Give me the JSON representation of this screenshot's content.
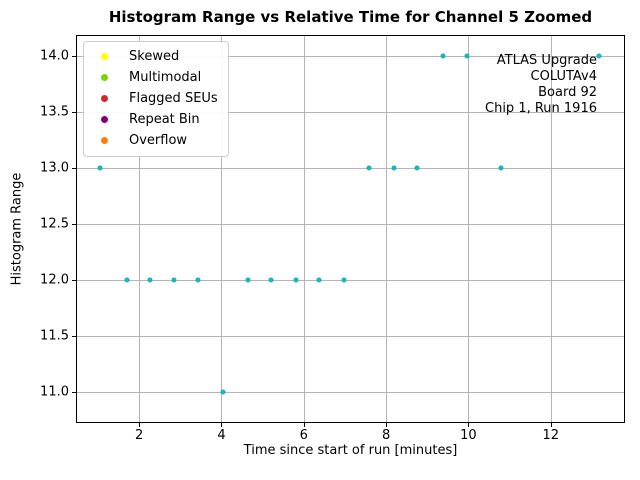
{
  "chart_data": {
    "type": "scatter",
    "title": "Histogram Range vs Relative Time for Channel 5 Zoomed",
    "xlabel": "Time since start of run [minutes]",
    "ylabel": "Histogram Range",
    "xlim": [
      0.49,
      13.78
    ],
    "ylim": [
      10.73,
      14.18
    ],
    "grid": true,
    "grid_color": "#b4b4b4",
    "xticks": {
      "values": [
        2,
        4,
        6,
        8,
        10,
        12
      ],
      "labels": [
        "2",
        "4",
        "6",
        "8",
        "10",
        "12"
      ]
    },
    "yticks": {
      "values": [
        11.0,
        11.5,
        12.0,
        12.5,
        13.0,
        13.5,
        14.0
      ],
      "labels": [
        "11.0",
        "11.5",
        "12.0",
        "12.5",
        "13.0",
        "13.5",
        "14.0"
      ]
    },
    "series": [
      {
        "name": "histogram-range-points",
        "marker_color": "#17becf",
        "marker_edge_color": "#12a8b8",
        "points": [
          [
            1.05,
            13
          ],
          [
            1.7,
            12
          ],
          [
            2.27,
            12
          ],
          [
            2.85,
            12
          ],
          [
            3.43,
            12
          ],
          [
            4.03,
            11
          ],
          [
            4.65,
            12
          ],
          [
            5.21,
            12
          ],
          [
            5.81,
            12
          ],
          [
            6.38,
            12
          ],
          [
            6.98,
            12
          ],
          [
            7.58,
            13
          ],
          [
            8.18,
            13
          ],
          [
            8.75,
            13
          ],
          [
            9.38,
            14
          ],
          [
            9.96,
            14
          ],
          [
            10.78,
            13
          ],
          [
            13.17,
            14
          ]
        ]
      }
    ],
    "legend": {
      "position": "upper-left",
      "entries": [
        {
          "label": "Skewed",
          "color": "#ffff00"
        },
        {
          "label": "Multimodal",
          "color": "#7cd403"
        },
        {
          "label": "Flagged SEUs",
          "color": "#d62728"
        },
        {
          "label": "Repeat Bin",
          "color": "#800080"
        },
        {
          "label": "Overflow",
          "color": "#ff7f0e"
        }
      ]
    },
    "annotation": {
      "align": "right",
      "lines": [
        "ATLAS Upgrade",
        "COLUTAv4",
        "Board 92",
        "Chip 1, Run 1916"
      ]
    }
  }
}
